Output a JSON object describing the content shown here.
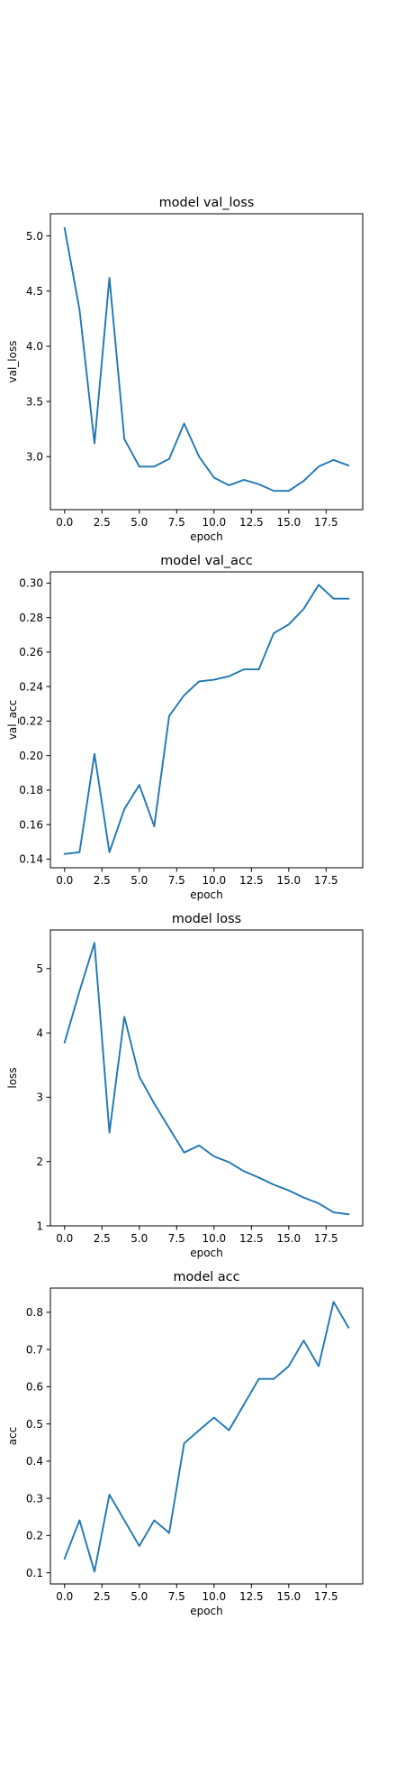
{
  "figure": {
    "line_color": "#1f77b4",
    "axes_color": "#000000",
    "background": "#ffffff"
  },
  "chart_data": [
    {
      "type": "line",
      "title": "model val_loss",
      "xlabel": "epoch",
      "ylabel": "val_loss",
      "xlim": [
        -0.95,
        19.95
      ],
      "ylim": [
        2.52,
        5.2
      ],
      "grid": false,
      "xticks": [
        0,
        2.5,
        5,
        7.5,
        10,
        12.5,
        15,
        17.5
      ],
      "xtick_labels": [
        "0.0",
        "2.5",
        "5.0",
        "7.5",
        "10.0",
        "12.5",
        "15.0",
        "17.5"
      ],
      "yticks": [
        3.0,
        3.5,
        4.0,
        4.5,
        5.0
      ],
      "ytick_labels": [
        "3.0",
        "3.5",
        "4.0",
        "4.5",
        "5.0"
      ],
      "x": [
        0,
        1,
        2,
        3,
        4,
        5,
        6,
        7,
        8,
        9,
        10,
        11,
        12,
        13,
        14,
        15,
        16,
        17,
        18,
        19
      ],
      "series": [
        {
          "values": [
            5.07,
            4.33,
            3.12,
            4.62,
            3.16,
            2.91,
            2.91,
            2.98,
            3.3,
            3.0,
            2.81,
            2.74,
            2.79,
            2.75,
            2.69,
            2.69,
            2.78,
            2.91,
            2.97,
            2.92
          ]
        }
      ]
    },
    {
      "type": "line",
      "title": "model val_acc",
      "xlabel": "epoch",
      "ylabel": "val_acc",
      "xlim": [
        -0.95,
        19.95
      ],
      "ylim": [
        0.135,
        0.3065
      ],
      "grid": false,
      "xticks": [
        0,
        2.5,
        5,
        7.5,
        10,
        12.5,
        15,
        17.5
      ],
      "xtick_labels": [
        "0.0",
        "2.5",
        "5.0",
        "7.5",
        "10.0",
        "12.5",
        "15.0",
        "17.5"
      ],
      "yticks": [
        0.14,
        0.16,
        0.18,
        0.2,
        0.22,
        0.24,
        0.26,
        0.28,
        0.3
      ],
      "ytick_labels": [
        "0.14",
        "0.16",
        "0.18",
        "0.20",
        "0.22",
        "0.24",
        "0.26",
        "0.28",
        "0.30"
      ],
      "x": [
        0,
        1,
        2,
        3,
        4,
        5,
        6,
        7,
        8,
        9,
        10,
        11,
        12,
        13,
        14,
        15,
        16,
        17,
        18,
        19
      ],
      "series": [
        {
          "values": [
            0.143,
            0.144,
            0.201,
            0.144,
            0.169,
            0.183,
            0.159,
            0.223,
            0.235,
            0.243,
            0.244,
            0.246,
            0.25,
            0.25,
            0.271,
            0.276,
            0.285,
            0.299,
            0.291,
            0.291
          ]
        }
      ]
    },
    {
      "type": "line",
      "title": "model loss",
      "xlabel": "epoch",
      "ylabel": "loss",
      "xlim": [
        -0.95,
        19.95
      ],
      "ylim": [
        1.0,
        5.6
      ],
      "grid": false,
      "xticks": [
        0,
        2.5,
        5,
        7.5,
        10,
        12.5,
        15,
        17.5
      ],
      "xtick_labels": [
        "0.0",
        "2.5",
        "5.0",
        "7.5",
        "10.0",
        "12.5",
        "15.0",
        "17.5"
      ],
      "yticks": [
        1,
        2,
        3,
        4,
        5
      ],
      "ytick_labels": [
        "1",
        "2",
        "3",
        "4",
        "5"
      ],
      "x": [
        0,
        1,
        2,
        3,
        4,
        5,
        6,
        7,
        8,
        9,
        10,
        11,
        12,
        13,
        14,
        15,
        16,
        17,
        18,
        19
      ],
      "series": [
        {
          "values": [
            3.85,
            4.65,
            5.4,
            2.45,
            4.25,
            3.32,
            2.9,
            2.52,
            2.14,
            2.25,
            2.08,
            1.99,
            1.85,
            1.75,
            1.64,
            1.55,
            1.44,
            1.35,
            1.21,
            1.18
          ]
        }
      ]
    },
    {
      "type": "line",
      "title": "model acc",
      "xlabel": "epoch",
      "ylabel": "acc",
      "xlim": [
        -0.95,
        19.95
      ],
      "ylim": [
        0.07,
        0.865
      ],
      "grid": false,
      "xticks": [
        0,
        2.5,
        5,
        7.5,
        10,
        12.5,
        15,
        17.5
      ],
      "xtick_labels": [
        "0.0",
        "2.5",
        "5.0",
        "7.5",
        "10.0",
        "12.5",
        "15.0",
        "17.5"
      ],
      "yticks": [
        0.1,
        0.2,
        0.3,
        0.4,
        0.5,
        0.6,
        0.7,
        0.8
      ],
      "ytick_labels": [
        "0.1",
        "0.2",
        "0.3",
        "0.4",
        "0.5",
        "0.6",
        "0.7",
        "0.8"
      ],
      "x": [
        0,
        1,
        2,
        3,
        4,
        5,
        6,
        7,
        8,
        9,
        10,
        11,
        12,
        13,
        14,
        15,
        16,
        17,
        18,
        19
      ],
      "series": [
        {
          "values": [
            0.138,
            0.241,
            0.103,
            0.31,
            0.241,
            0.172,
            0.241,
            0.207,
            0.448,
            0.483,
            0.517,
            0.483,
            0.552,
            0.621,
            0.621,
            0.655,
            0.724,
            0.655,
            0.828,
            0.759
          ]
        }
      ]
    }
  ]
}
